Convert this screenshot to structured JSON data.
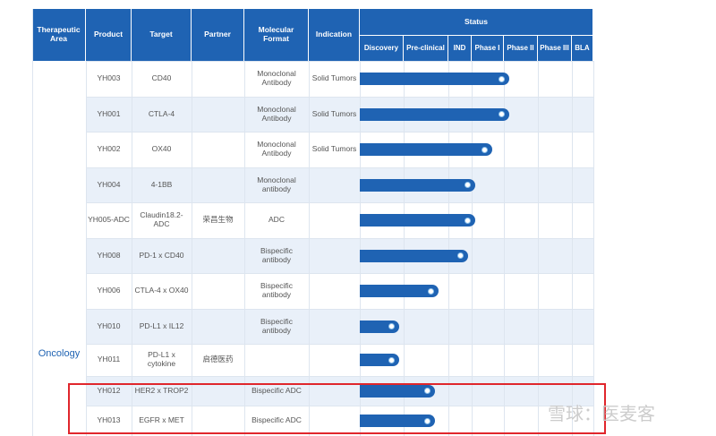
{
  "header": {
    "columns": [
      "Therapeutic Area",
      "Product",
      "Target",
      "Partner",
      "Molecular Format",
      "Indication"
    ],
    "status": "Status",
    "stages": [
      "Discovery",
      "Pre-clinical",
      "IND",
      "Phase I",
      "Phase II",
      "Phase III",
      "BLA"
    ]
  },
  "area": "Oncology",
  "rows": [
    {
      "product": "YH003",
      "target": "CD40",
      "partner": "",
      "format": "Monoclonal Antibody",
      "indication": "Solid Tumors",
      "progress": 4.16
    },
    {
      "product": "YH001",
      "target": "CTLA-4",
      "partner": "",
      "format": "Monoclonal Antibody",
      "indication": "Solid Tumors",
      "progress": 4.16
    },
    {
      "product": "YH002",
      "target": "OX40",
      "partner": "",
      "format": "Monoclonal Antibody",
      "indication": "Solid Tumors",
      "progress": 3.64
    },
    {
      "product": "YH004",
      "target": "4-1BB",
      "partner": "",
      "format": "Monoclonal antibody",
      "indication": "",
      "progress": 3.11
    },
    {
      "product": "YH005-ADC",
      "target": "Claudin18.2-ADC",
      "partner": "荣昌生物",
      "format": "ADC",
      "indication": "",
      "progress": 3.11
    },
    {
      "product": "YH008",
      "target": "PD-1 x CD40",
      "partner": "",
      "format": "Bispecific antibody",
      "indication": "",
      "progress": 2.85
    },
    {
      "product": "YH006",
      "target": "CTLA-4 x OX40",
      "partner": "",
      "format": "Bispecific antibody",
      "indication": "",
      "progress": 1.78
    },
    {
      "product": "YH010",
      "target": "PD-L1 x IL12",
      "partner": "",
      "format": "Bispecific antibody",
      "indication": "",
      "progress": 0.9
    },
    {
      "product": "YH011",
      "target": "PD-L1 x cytokine",
      "partner": "启德医药",
      "format": "",
      "indication": "",
      "progress": 0.9
    },
    {
      "product": "YH012",
      "target": "HER2 x TROP2",
      "partner": "",
      "format": "Bispecific ADC",
      "indication": "",
      "progress": 1.7
    },
    {
      "product": "YH013",
      "target": "EGFR x MET",
      "partner": "",
      "format": "Bispecific ADC",
      "indication": "",
      "progress": 1.7
    }
  ],
  "watermark": "雪球：医麦客"
}
